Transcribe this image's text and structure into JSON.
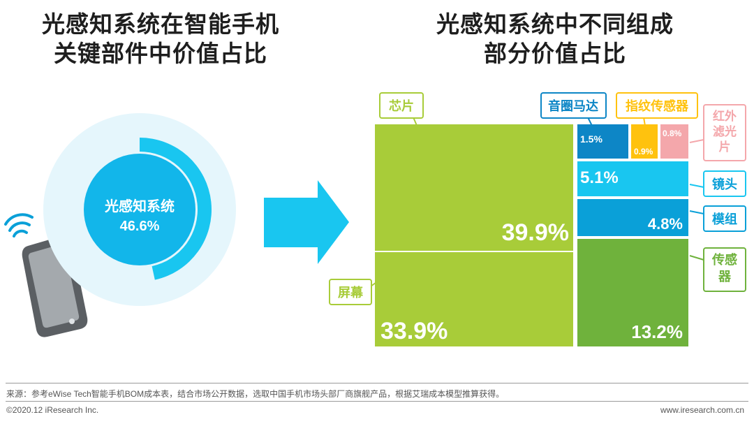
{
  "left_title": [
    "光感知系统在智能手机",
    "关键部件中价值占比"
  ],
  "right_title": [
    "光感知系统中不同组成",
    "部分价值占比"
  ],
  "footer": {
    "source": "来源：参考eWise Tech智能手机BOM成本表，结合市场公开数据，选取中国手机市场头部厂商旗舰产品，根据艾瑞成本模型推算获得。",
    "copyright": "©2020.12 iResearch Inc.",
    "website": "www.iresearch.com.cn"
  },
  "colors": {
    "green": "#a8cc39",
    "dark_green": "#6fb23c",
    "cyan": "#19c6f0",
    "blue": "#0aa0d8",
    "dark_blue": "#0d86c6",
    "yellow": "#ffc20e",
    "pink": "#f4a7ab",
    "donut_bg": "#e5f6fc"
  },
  "chart_data": [
    {
      "type": "pie",
      "title": "光感知系统在智能手机关键部件中价值占比",
      "center_label": "光感知系统",
      "center_value": "46.6%",
      "values": [
        46.6
      ],
      "labels": [
        "光感知系统"
      ]
    },
    {
      "type": "treemap",
      "title": "光感知系统中不同组成部分价值占比",
      "labels": [
        "芯片",
        "屏幕",
        "音圈马达",
        "指纹传感器",
        "红外滤光片",
        "镜头",
        "模组",
        "传感器"
      ],
      "values": [
        39.9,
        33.9,
        1.5,
        0.9,
        0.8,
        5.1,
        4.8,
        13.2
      ],
      "value_labels": [
        "39.9%",
        "33.9%",
        "1.5%",
        "0.9%",
        "0.8%",
        "5.1%",
        "4.8%",
        "13.2%"
      ]
    }
  ]
}
